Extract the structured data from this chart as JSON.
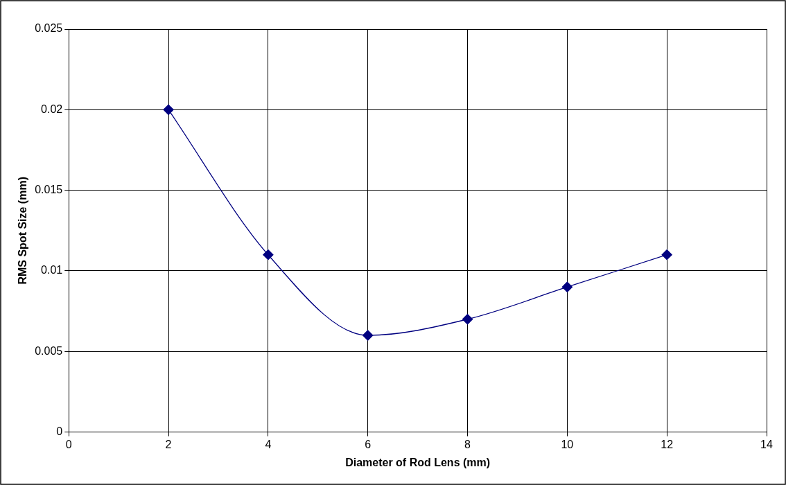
{
  "chart_data": {
    "type": "line",
    "xlabel": "Diameter of Rod Lens (mm)",
    "ylabel": "RMS Spot Size (mm)",
    "x": [
      2,
      4,
      6,
      8,
      10,
      12
    ],
    "series": [
      {
        "color": "#000080",
        "values": [
          0.02,
          0.011,
          0.006,
          0.007,
          0.009,
          0.011
        ]
      }
    ],
    "xlim": [
      0,
      14
    ],
    "xticks": [
      0,
      2,
      4,
      6,
      8,
      10,
      12,
      14
    ],
    "ylim": [
      0,
      0.025
    ],
    "yticks": [
      0,
      0.005,
      0.01,
      0.015,
      0.02,
      0.025
    ],
    "grid": true,
    "legend": false,
    "marker": "diamond",
    "line_style": "solid"
  }
}
